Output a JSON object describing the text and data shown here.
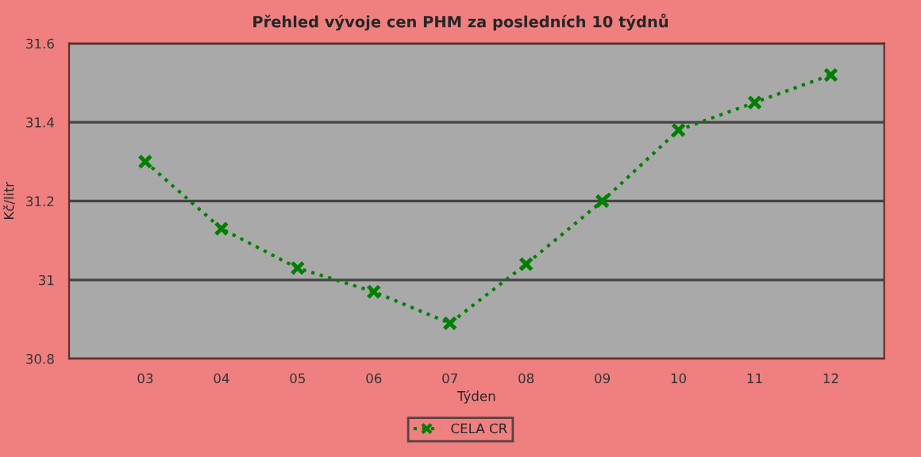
{
  "chart_data": {
    "type": "line",
    "title": "Přehled vývoje cen PHM za posledních 10 týdnů",
    "xlabel": "Týden",
    "ylabel": "Kč/litr",
    "categories": [
      "03",
      "04",
      "05",
      "06",
      "07",
      "08",
      "09",
      "10",
      "11",
      "12"
    ],
    "series": [
      {
        "name": "CELA CR",
        "color": "#008000",
        "values": [
          31.3,
          31.13,
          31.03,
          30.97,
          30.89,
          31.04,
          31.2,
          31.38,
          31.45,
          31.52
        ]
      }
    ],
    "ylim": [
      30.8,
      31.6
    ],
    "yticks": [
      {
        "value": 30.8,
        "label": "30.8"
      },
      {
        "value": 31.0,
        "label": "31"
      },
      {
        "value": 31.2,
        "label": "31.2"
      },
      {
        "value": 31.4,
        "label": "31.4"
      },
      {
        "value": 31.6,
        "label": "31.6"
      }
    ],
    "grid": "y",
    "legend": "bottom",
    "marker": "cross",
    "line_style": "dotted"
  }
}
